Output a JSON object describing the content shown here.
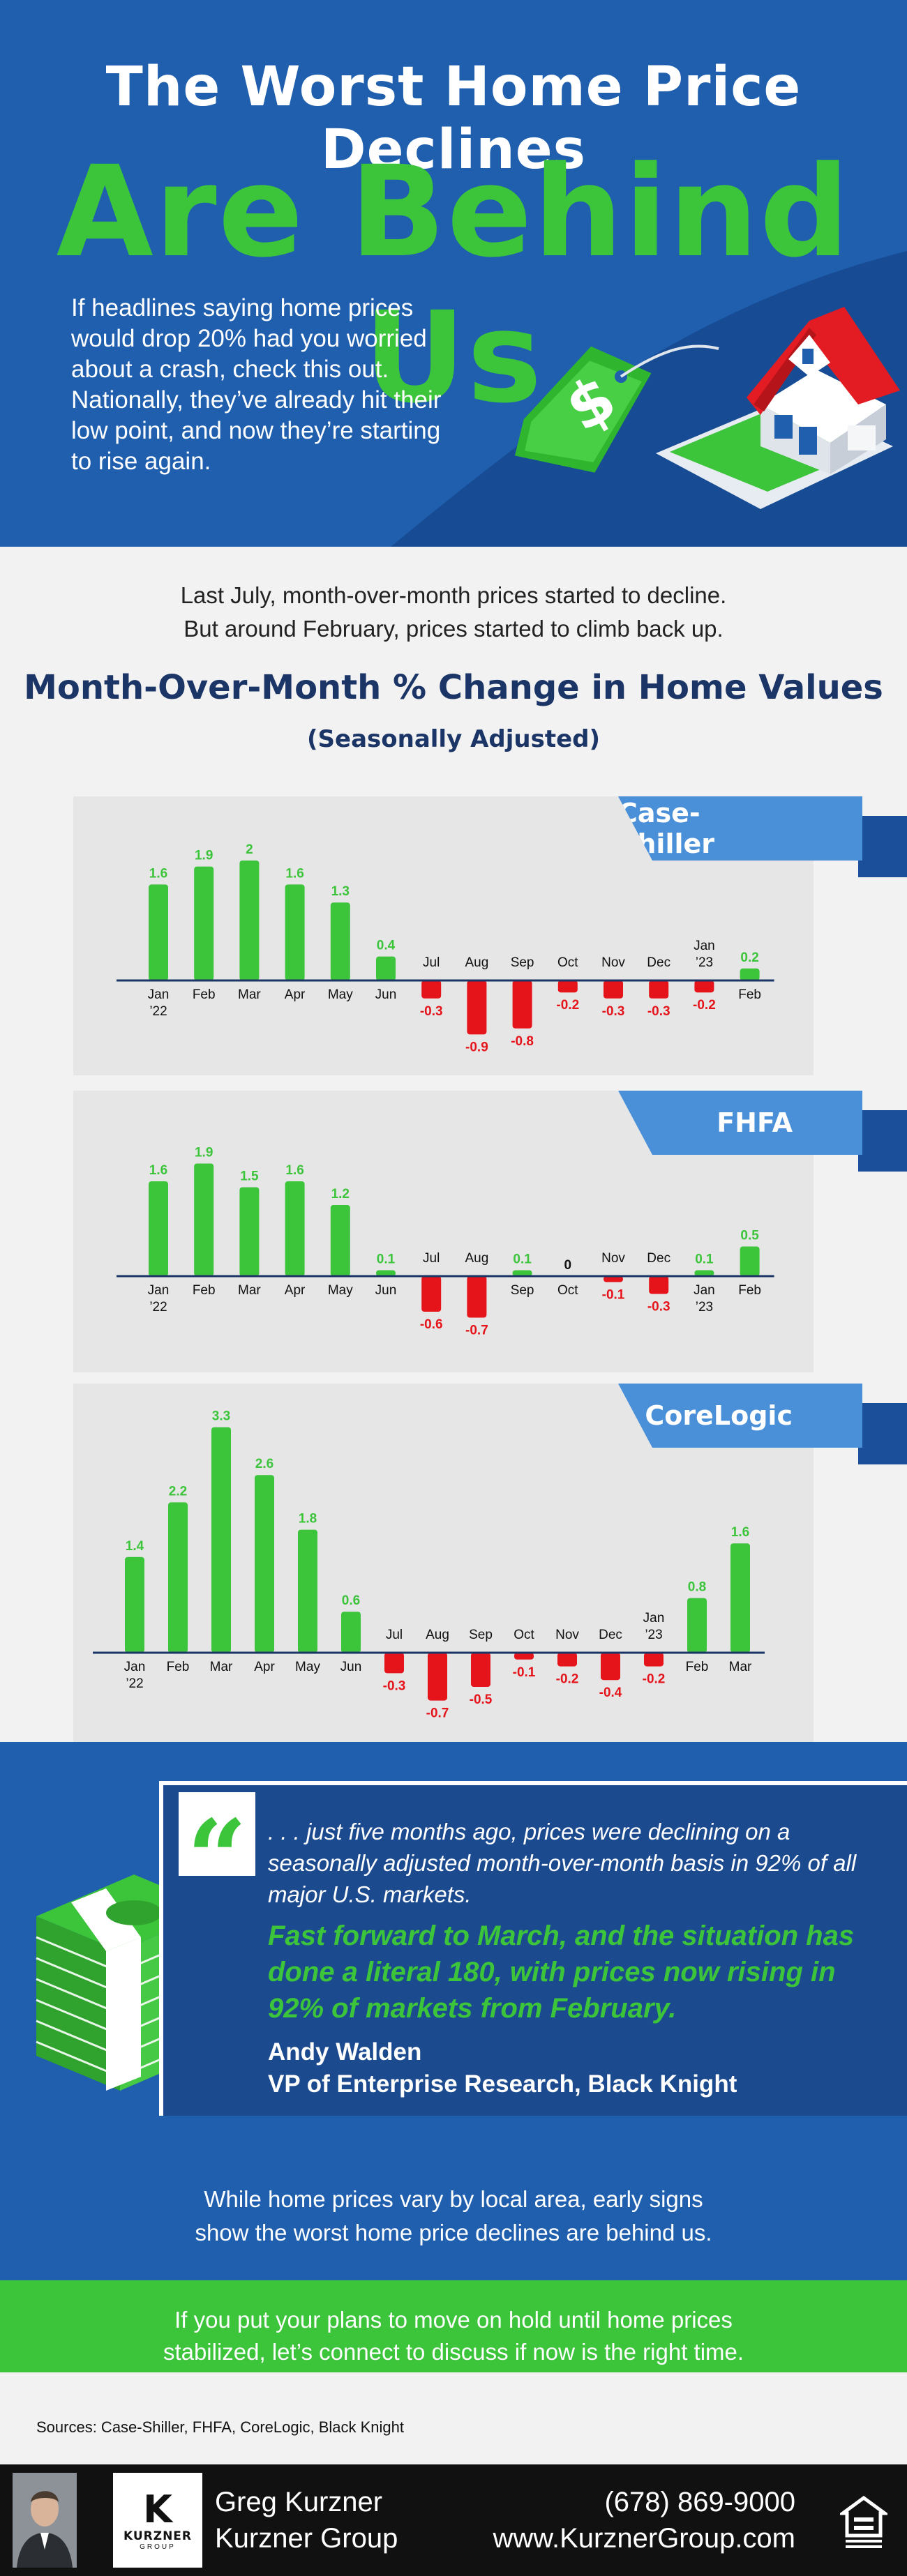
{
  "hero": {
    "title_line1": "The Worst Home Price Declines",
    "title_line2": "Are Behind Us",
    "intro": "If headlines saying home prices would drop 20% had you worried about a crash, check this out. Nationally, they’ve already hit their low point, and now they’re starting to rise again."
  },
  "intro": {
    "line1": "Last July, month-over-month prices started to decline.",
    "line2": "But around February, prices started to climb back up."
  },
  "section": {
    "title": "Month-Over-Month % Change in Home Values",
    "subtitle": "(Seasonally Adjusted)"
  },
  "colors": {
    "positive": "#3cc43a",
    "negative": "#e5141b",
    "accent_blue": "#1f5fae",
    "badge_blue": "#4a90d9",
    "navy": "#1b3567"
  },
  "chart_data": [
    {
      "type": "bar",
      "title": "Case-Shiller",
      "categories": [
        "Jan ’22",
        "Feb",
        "Mar",
        "Apr",
        "May",
        "Jun",
        "Jul",
        "Aug",
        "Sep",
        "Oct",
        "Nov",
        "Dec",
        "Jan ’23",
        "Feb"
      ],
      "values": [
        1.6,
        1.9,
        2,
        1.6,
        1.3,
        0.4,
        -0.3,
        -0.9,
        -0.8,
        -0.2,
        -0.3,
        -0.3,
        -0.2,
        0.2
      ],
      "labels": [
        "1.6",
        "1.9",
        "2",
        "1.6",
        "1.3",
        "0.4",
        "-0.3",
        "-0.9",
        "-0.8",
        "-0.2",
        "-0.3",
        "-0.3",
        "-0.2",
        "0.2"
      ]
    },
    {
      "type": "bar",
      "title": "FHFA",
      "categories": [
        "Jan ’22",
        "Feb",
        "Mar",
        "Apr",
        "May",
        "Jun",
        "Jul",
        "Aug",
        "Sep",
        "Oct",
        "Nov",
        "Dec",
        "Jan ’23",
        "Feb"
      ],
      "values": [
        1.6,
        1.9,
        1.5,
        1.6,
        1.2,
        0.1,
        -0.6,
        -0.7,
        0.1,
        0,
        -0.1,
        -0.3,
        0.1,
        0.5
      ],
      "labels": [
        "1.6",
        "1.9",
        "1.5",
        "1.6",
        "1.2",
        "0.1",
        "-0.6",
        "-0.7",
        "0.1",
        "0",
        "-0.1",
        "-0.3",
        "0.1",
        "0.5"
      ]
    },
    {
      "type": "bar",
      "title": "CoreLogic",
      "categories": [
        "Jan ’22",
        "Feb",
        "Mar",
        "Apr",
        "May",
        "Jun",
        "Jul",
        "Aug",
        "Sep",
        "Oct",
        "Nov",
        "Dec",
        "Jan ’23",
        "Feb",
        "Mar"
      ],
      "values": [
        1.4,
        2.2,
        3.3,
        2.6,
        1.8,
        0.6,
        -0.3,
        -0.7,
        -0.5,
        -0.1,
        -0.2,
        -0.4,
        -0.2,
        0.8,
        1.6
      ],
      "labels": [
        "1.4",
        "2.2",
        "3.3",
        "2.6",
        "1.8",
        "0.6",
        "-0.3",
        "-0.7",
        "-0.5",
        "-0.1",
        "-0.2",
        "-0.4",
        "-0.2",
        "0.8",
        "1.6"
      ]
    }
  ],
  "quote": {
    "mark": "“",
    "text1": ". . . just five months ago, prices were declining on a seasonally adjusted month-over-month basis in 92% of all major U.S. markets.",
    "text2": "Fast forward to March, and the situation has done a literal 180, with prices now rising in 92% of markets from February.",
    "author": "Andy Walden",
    "role": "VP of Enterprise Research, Black Knight"
  },
  "closing": {
    "line1": "While home prices vary by local area, early signs",
    "line2": "show the worst home price declines are behind us."
  },
  "cta": {
    "line1": "If you put your plans to move on hold until home prices",
    "line2": "stabilized, let’s connect to discuss if now is the right time."
  },
  "sources": "Sources: Case-Shiller, FHFA, CoreLogic, Black Knight",
  "footer": {
    "name": "Greg Kurzner",
    "company": "Kurzner Group",
    "phone": "(678) 869-9000",
    "website": "www.KurznerGroup.com",
    "logo_mark": "K",
    "logo_name": "KURZNER",
    "logo_sub": "GROUP"
  }
}
